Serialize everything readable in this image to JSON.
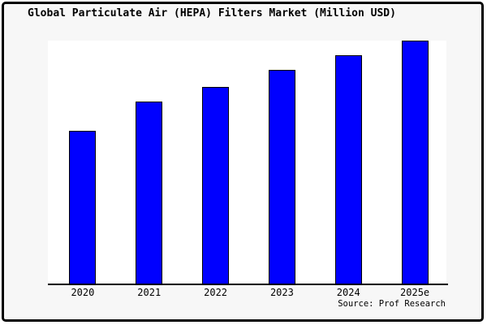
{
  "page": {
    "title": "Global Particulate Air (HEPA) Filters Market (Million USD)",
    "source": "Source: Prof Research"
  },
  "colors": {
    "bar_fill": "#0000ff",
    "bar_border": "#000000",
    "axis_line": "#000000",
    "frame_border": "#000000",
    "frame_background": "#f7f7f7",
    "plot_background": "#ffffff",
    "text": "#000000"
  },
  "chart_data": {
    "type": "bar",
    "title": "Global Particulate Air (HEPA) Filters Market (Million USD)",
    "categories": [
      "2020",
      "2021",
      "2022",
      "2023",
      "2024",
      "2025e"
    ],
    "values": [
      63,
      75,
      81,
      88,
      94,
      100
    ],
    "units": "relative bar height, % of tallest bar (no numeric y-axis shown)",
    "xlabel": "",
    "ylabel": "",
    "ylim": [
      0,
      100
    ],
    "grid": false,
    "y_axis_visible": false,
    "legend": null,
    "source": "Source: Prof Research"
  }
}
